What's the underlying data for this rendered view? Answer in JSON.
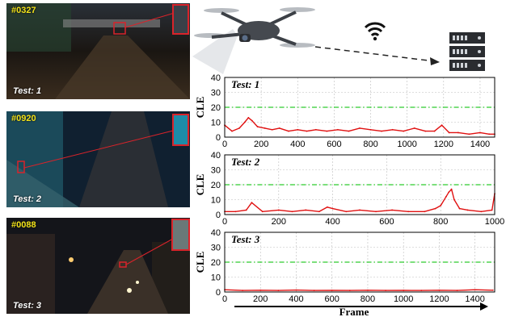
{
  "photos": [
    {
      "frame_id": "#0327",
      "label": "Test: 1"
    },
    {
      "frame_id": "#0920",
      "label": "Test: 2"
    },
    {
      "frame_id": "#0088",
      "label": "Test: 3"
    }
  ],
  "icons": {
    "drone": "drone-icon",
    "wifi": "wifi-icon",
    "server": "server-icon"
  },
  "colors": {
    "series": "#e01010",
    "threshold": "#2ecc2e",
    "highlight": "#d9232a"
  },
  "chart_data": [
    {
      "type": "line",
      "title": "Test: 1",
      "ylabel": "CLE",
      "xlabel": "",
      "xlim": [
        0,
        1480
      ],
      "ylim": [
        0,
        40
      ],
      "xticks": [
        0,
        200,
        400,
        600,
        800,
        1000,
        1200,
        1400
      ],
      "yticks": [
        0,
        10,
        20,
        30,
        40
      ],
      "threshold": 20,
      "series": [
        {
          "x": [
            0,
            40,
            80,
            110,
            130,
            150,
            180,
            220,
            260,
            300,
            350,
            400,
            450,
            500,
            560,
            620,
            680,
            740,
            800,
            860,
            920,
            980,
            1040,
            1100,
            1150,
            1190,
            1230,
            1280,
            1340,
            1400,
            1450,
            1480
          ],
          "values": [
            8,
            4,
            6,
            10,
            13,
            11,
            7,
            6,
            5,
            6,
            4,
            5,
            4,
            5,
            4,
            5,
            4,
            6,
            5,
            4,
            5,
            4,
            6,
            4,
            4,
            8,
            3,
            3,
            2,
            3,
            2,
            2
          ]
        }
      ]
    },
    {
      "type": "line",
      "title": "Test: 2",
      "ylabel": "CLE",
      "xlabel": "",
      "xlim": [
        0,
        1000
      ],
      "ylim": [
        0,
        40
      ],
      "xticks": [
        0,
        200,
        400,
        600,
        800,
        1000
      ],
      "yticks": [
        0,
        10,
        20,
        30,
        40
      ],
      "threshold": 20,
      "series": [
        {
          "x": [
            0,
            40,
            80,
            100,
            140,
            200,
            250,
            300,
            350,
            380,
            400,
            450,
            500,
            560,
            620,
            680,
            740,
            780,
            800,
            820,
            830,
            840,
            850,
            870,
            900,
            950,
            990,
            1000
          ],
          "values": [
            2,
            2,
            3,
            8,
            2,
            3,
            2,
            3,
            2,
            5,
            4,
            2,
            3,
            2,
            3,
            2,
            2,
            4,
            6,
            12,
            15,
            17,
            10,
            4,
            3,
            2,
            3,
            14
          ]
        }
      ]
    },
    {
      "type": "line",
      "title": "Test: 3",
      "ylabel": "CLE",
      "xlabel": "Frame",
      "xlim": [
        0,
        1510
      ],
      "ylim": [
        0,
        40
      ],
      "xticks": [
        0,
        200,
        400,
        600,
        800,
        1000,
        1200,
        1400
      ],
      "yticks": [
        0,
        10,
        20,
        30,
        40
      ],
      "threshold": 20,
      "series": [
        {
          "x": [
            0,
            100,
            200,
            300,
            400,
            500,
            600,
            700,
            800,
            900,
            1000,
            1100,
            1200,
            1300,
            1400,
            1500
          ],
          "values": [
            1.5,
            1,
            1.2,
            1,
            1.3,
            1,
            1.1,
            1,
            1.2,
            1,
            1.1,
            1,
            1.2,
            1,
            1.5,
            1.2
          ]
        }
      ]
    }
  ]
}
